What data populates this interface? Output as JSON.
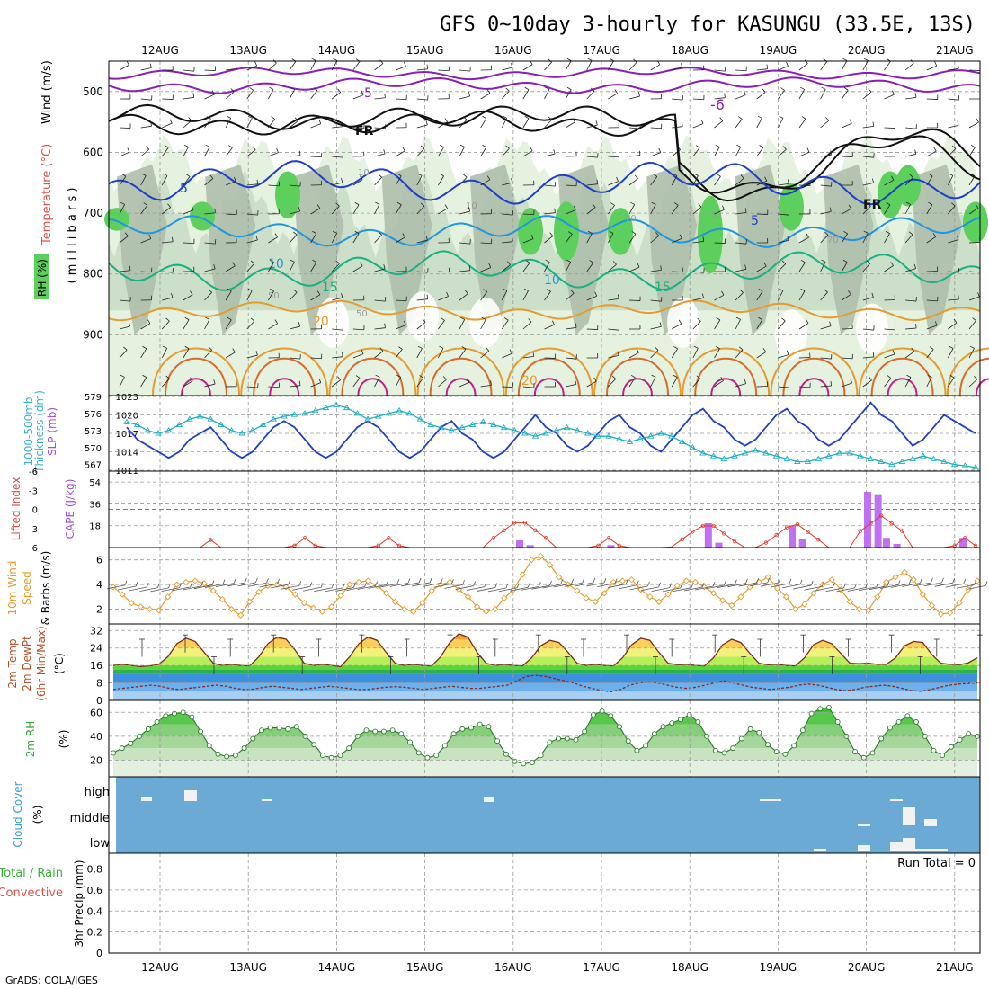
{
  "header": {
    "title": "GFS 0~10day 3-hourly for KASUNGU (33.5E, 13S)",
    "footer": "GrADS: COLA/IGES"
  },
  "chart_data": [
    {
      "id": "upper_air",
      "type": "area",
      "ylabel_parts": [
        "RH (%)",
        "Temperature (°C)",
        "Wind (m/s)"
      ],
      "ylabel_units": "( m i l l i b a r s )",
      "y_ticks": [
        500,
        600,
        700,
        800,
        900
      ],
      "ylim": [
        1000,
        450
      ],
      "temperature_contour_labels": [
        "-5",
        "-6",
        "FR",
        "FR",
        "5",
        "5",
        "10",
        "10",
        "15",
        "15",
        "20",
        "20"
      ],
      "rh_contour_labels": [
        "10",
        "10",
        "30",
        "50",
        "50",
        "70",
        "70"
      ],
      "isotherm_mean_mb": {
        "-5": 490,
        "0(FR)": 550,
        "5": 650,
        "10": 730,
        "15": 790,
        "20": 860
      }
    },
    {
      "id": "thickness_slp",
      "type": "line",
      "ylabel_left": "1000-500mb Thickness (dm)",
      "ylabel_right": "SLP (mb)",
      "left_ticks": [
        567,
        570,
        573,
        576,
        579
      ],
      "right_ticks": [
        1011,
        1014,
        1017,
        1020,
        1023
      ],
      "series": [
        {
          "name": "SLP (mb)",
          "color": "#1f3fc8",
          "values": [
            1018,
            1016,
            1015,
            1014,
            1013,
            1014,
            1016,
            1017,
            1018,
            1016,
            1014,
            1013,
            1014,
            1016,
            1018,
            1019,
            1018,
            1016,
            1014,
            1013,
            1014,
            1016,
            1018,
            1019,
            1018,
            1016,
            1014,
            1013,
            1014,
            1016,
            1018,
            1019,
            1017,
            1016,
            1014,
            1013,
            1014,
            1016,
            1018,
            1020,
            1018,
            1017,
            1015,
            1014,
            1015,
            1017,
            1019,
            1020,
            1018,
            1017,
            1015,
            1014,
            1016,
            1018,
            1020,
            1021,
            1019,
            1018,
            1016,
            1015,
            1016,
            1018,
            1020,
            1021,
            1019,
            1018,
            1016,
            1015,
            1016,
            1018,
            1020,
            1022,
            1020,
            1019,
            1017,
            1015,
            1016,
            1018,
            1020,
            1019,
            1018,
            1017
          ]
        },
        {
          "name": "Thickness (dm)",
          "color": "#20b0c0",
          "values": [
            574.5,
            574,
            573,
            572.5,
            573,
            574,
            575,
            575.5,
            575,
            574,
            573,
            572.5,
            573,
            574,
            575,
            575.5,
            575.8,
            576,
            576.5,
            577,
            577.5,
            577,
            576,
            575,
            575.5,
            576,
            576.5,
            576,
            575,
            574,
            573.5,
            573,
            573.5,
            574,
            574.5,
            574,
            573.5,
            573,
            572.5,
            572,
            572.5,
            573,
            573.5,
            573,
            572.5,
            572,
            572,
            571.5,
            571,
            571.5,
            572,
            572.5,
            572,
            571,
            570,
            569,
            568.5,
            568,
            568.5,
            569,
            569.5,
            569,
            568.5,
            568,
            567.5,
            567.5,
            568,
            568.5,
            569,
            569,
            568.5,
            568,
            567.5,
            567,
            567.5,
            568,
            568.5,
            568,
            567.5,
            567,
            566.8,
            566.5
          ]
        }
      ]
    },
    {
      "id": "cape_li",
      "type": "bar",
      "ylabel_left": "Lifted Index",
      "ylabel_right": "CAPE (J/kg)",
      "li_ticks": [
        -6,
        -3,
        0,
        3,
        6
      ],
      "cape_ticks": [
        18,
        36,
        54
      ],
      "cape_bars": [
        {
          "x": 37.5,
          "value": 6
        },
        {
          "x": 38.5,
          "value": 2
        },
        {
          "x": 46.2,
          "value": 2
        },
        {
          "x": 55.5,
          "value": 20
        },
        {
          "x": 56.5,
          "value": 4
        },
        {
          "x": 63.5,
          "value": 18
        },
        {
          "x": 64.5,
          "value": 7
        },
        {
          "x": 70.7,
          "value": 46
        },
        {
          "x": 71.7,
          "value": 44
        },
        {
          "x": 72.5,
          "value": 8
        },
        {
          "x": 73.5,
          "value": 3
        },
        {
          "x": 79.8,
          "value": 8
        }
      ]
    },
    {
      "id": "wind10m",
      "type": "line",
      "ylabel": "10m Wind Speed & Barbs (m/s)",
      "y_ticks": [
        2,
        4,
        6
      ],
      "series": [
        {
          "name": "10m Wind Speed",
          "color": "#e89b2c",
          "values": [
            3.8,
            3.2,
            2.5,
            2.2,
            2.0,
            1.9,
            3.0,
            4.0,
            4.2,
            4.3,
            4.1,
            3.5,
            2.8,
            2.0,
            1.5,
            2.6,
            3.4,
            3.9,
            4.0,
            3.8,
            3.2,
            2.5,
            2.1,
            1.8,
            2.2,
            3.1,
            4.0,
            4.2,
            4.3,
            3.9,
            3.3,
            2.6,
            2.0,
            1.8,
            2.5,
            3.5,
            4.0,
            4.2,
            3.6,
            3.0,
            2.2,
            1.8,
            2.0,
            2.9,
            3.6,
            4.8,
            6.0,
            6.3,
            5.6,
            4.6,
            4.0,
            3.5,
            2.9,
            2.6,
            3.3,
            4.2,
            4.3,
            4.4,
            3.6,
            3.0,
            2.6,
            3.2,
            3.9,
            4.3,
            4.2,
            3.8,
            3.3,
            2.7,
            2.3,
            3.0,
            3.8,
            4.2,
            4.6,
            3.7,
            3.0,
            2.0,
            2.4,
            3.3,
            4.0,
            4.4,
            3.6,
            2.6,
            2.0,
            1.9,
            3.0,
            4.2,
            4.6,
            5.0,
            4.4,
            3.2,
            2.3,
            1.6,
            1.7,
            2.5,
            3.6,
            4.3
          ]
        }
      ]
    },
    {
      "id": "temp2m",
      "type": "area",
      "ylabel": "2m Temp 2m DewPt (6hr Min/Max) (°C)",
      "y_ticks": [
        0,
        8,
        16,
        24,
        32
      ],
      "series": [
        {
          "name": "2m Temp",
          "values": [
            16,
            16.5,
            16,
            15.5,
            15.8,
            16.5,
            20,
            26,
            28.5,
            27,
            22,
            17,
            16,
            16.5,
            16,
            15.8,
            20,
            26,
            29,
            28,
            23,
            17,
            16,
            16.5,
            16,
            15.5,
            20,
            26,
            29,
            27.5,
            22,
            17,
            16,
            16.5,
            16,
            15.8,
            20,
            26.5,
            30.5,
            29,
            22,
            17,
            16,
            16.5,
            16,
            15.8,
            19.5,
            25,
            27.5,
            26.5,
            22,
            17,
            16,
            16.5,
            16,
            15.8,
            19.5,
            25.5,
            28.5,
            27.5,
            22,
            17,
            16.3,
            16.5,
            16,
            15.8,
            19.5,
            25.5,
            28,
            26.5,
            21.5,
            17,
            16.3,
            16.5,
            16,
            15.8,
            19.5,
            25.5,
            27.5,
            26,
            21.5,
            17,
            16.8,
            17,
            16.5,
            16.5,
            19.5,
            25,
            27,
            26.5,
            21,
            17,
            16.5,
            16.3,
            17.2,
            19.5
          ]
        },
        {
          "name": "2m DewPt",
          "values": [
            5,
            5.5,
            6,
            6.5,
            7,
            6.5,
            5.5,
            5,
            5.5,
            6,
            6.5,
            7,
            6.5,
            5.5,
            5,
            5.2,
            6,
            6.5,
            6,
            5.5,
            5,
            5.5,
            6,
            6.5,
            6,
            5.5,
            5,
            5,
            5.5,
            6,
            6.3,
            6,
            5.5,
            5,
            5.5,
            6,
            6.5,
            6,
            5.5,
            5.5,
            6,
            6.5,
            7,
            9,
            11,
            11.5,
            11,
            10,
            9,
            8,
            6.5,
            5.5,
            4.5,
            4,
            5,
            7,
            8,
            8.5,
            8,
            7,
            6,
            5.5,
            6,
            7,
            8,
            9,
            8,
            7,
            6,
            5.5,
            5,
            5.5,
            6,
            7,
            7.5,
            7,
            6,
            5,
            4.5,
            5,
            6,
            6.5,
            7,
            6.5,
            5.5,
            4.5,
            4.2,
            5,
            6,
            7,
            7.5,
            7.8,
            8
          ]
        }
      ]
    },
    {
      "id": "rh2m",
      "type": "area",
      "ylabel": "2m RH (%)",
      "y_ticks": [
        20,
        40,
        60
      ],
      "series": [
        {
          "name": "2m RH",
          "values": [
            26,
            30,
            34,
            40,
            46,
            52,
            57,
            59,
            60,
            56,
            44,
            32,
            25,
            23,
            24,
            30,
            38,
            45,
            47,
            47,
            46,
            48,
            40,
            33,
            24,
            22,
            24,
            30,
            40,
            45,
            44,
            44,
            45,
            42,
            35,
            26,
            22,
            24,
            32,
            42,
            46,
            47,
            50,
            48,
            36,
            25,
            19,
            17,
            18,
            24,
            35,
            38,
            38,
            37,
            44,
            58,
            61,
            57,
            48,
            36,
            28,
            32,
            42,
            48,
            51,
            54,
            58,
            52,
            40,
            28,
            26,
            30,
            38,
            46,
            43,
            33,
            27,
            25,
            32,
            45,
            59,
            63,
            64,
            52,
            40,
            27,
            22,
            26,
            38,
            47,
            52,
            57,
            52,
            40,
            28,
            24,
            31,
            37,
            42,
            40
          ]
        }
      ]
    },
    {
      "id": "cloud_cover",
      "type": "heatmap",
      "ylabel": "Cloud Cover (%)",
      "levels": [
        "high",
        "middle",
        "low"
      ]
    },
    {
      "id": "precip",
      "type": "bar",
      "ylabel": "3hr Precip (mm)",
      "left_labels": [
        "Total / Rain",
        "Convective"
      ],
      "y_ticks": [
        0,
        0.2,
        0.4,
        0.6,
        0.8
      ],
      "run_total": "Run Total = 0"
    }
  ],
  "x_axis": {
    "date_labels": [
      "12AUG",
      "13AUG",
      "14AUG",
      "15AUG",
      "16AUG",
      "17AUG",
      "18AUG",
      "19AUG",
      "20AUG",
      "21AUG"
    ]
  },
  "colors": {
    "rh_light": "#e6f2e0",
    "rh_mid": "#c7dcc3",
    "rh_dark": "#aebfab",
    "rh_bright": "#5ccf5c",
    "cloud_bg": "#6aaad5",
    "cloud_patch": "#f2f2f2",
    "iso_m5": "#8a1fb4",
    "iso_fr": "#111111",
    "iso_5": "#1f3fc8",
    "iso_10": "#2295e0",
    "iso_15": "#18b084",
    "iso_20": "#e69b30",
    "iso_25": "#d86a2a",
    "iso_30": "#c0208a",
    "cape": "#c070f0",
    "li": "#e03a2a"
  }
}
